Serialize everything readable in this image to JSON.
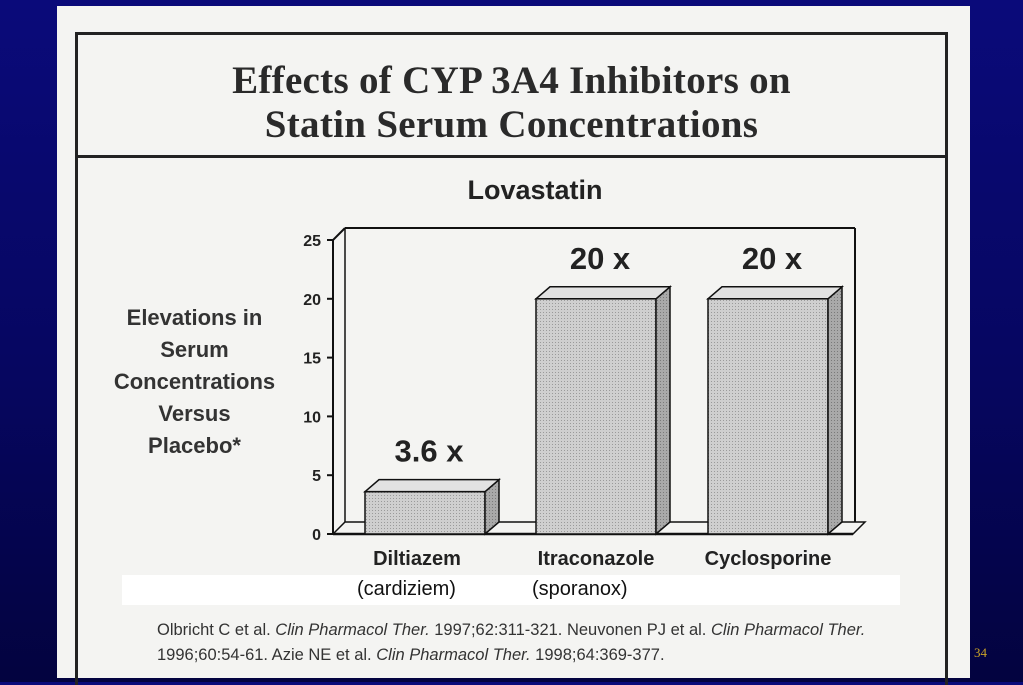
{
  "slide": {
    "title_line1": "Effects of CYP 3A4 Inhibitors on",
    "title_line2": "Statin Serum Concentrations",
    "page_number": "34"
  },
  "chart_data": {
    "type": "bar",
    "title": "Lovastatin",
    "ylabel": [
      "Elevations in",
      "Serum",
      "Concentrations",
      "Versus",
      "Placebo*"
    ],
    "categories": [
      "Diltiazem",
      "Itraconazole",
      "Cyclosporine"
    ],
    "values": [
      3.6,
      20,
      20
    ],
    "data_labels": [
      "3.6 x",
      "20 x",
      "20 x"
    ],
    "ylim": [
      0,
      25
    ],
    "yticks": [
      "0",
      "5",
      "10",
      "15",
      "20",
      "25"
    ],
    "grid": false,
    "colors": {
      "bar": "#cfcfcf",
      "bar_side": "#a9a9a9",
      "bar_top": "#e2e2e2",
      "stroke": "#111111"
    }
  },
  "brand_names": [
    "(cardiziem)",
    "(sporanox)"
  ],
  "citation": {
    "a1": "Olbricht C et al. ",
    "j1": "Clin Pharmacol Ther.",
    "a2": " 1997;62:311-321.  Neuvonen PJ et al. ",
    "j2": "Clin Pharmacol Ther.",
    "a3": " 1996;60:54-61.  Azie NE et al. ",
    "j3": "Clin Pharmacol Ther.",
    "a4": " 1998;64:369-377."
  }
}
